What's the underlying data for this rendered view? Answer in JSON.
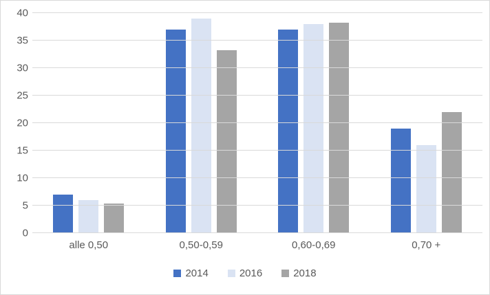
{
  "chart_data": {
    "type": "bar",
    "title": "",
    "xlabel": "",
    "ylabel": "",
    "categories": [
      "alle 0,50",
      "0,50-0,59",
      "0,60-0,69",
      "0,70 +"
    ],
    "series": [
      {
        "name": "2014",
        "color": "#4472C4",
        "values": [
          7,
          37,
          37,
          19
        ]
      },
      {
        "name": "2016",
        "color": "#DAE3F3",
        "values": [
          6,
          39,
          38,
          16
        ]
      },
      {
        "name": "2018",
        "color": "#A5A5A5",
        "values": [
          5.4,
          33.3,
          38.3,
          22
        ]
      }
    ],
    "ylim": [
      0,
      40
    ],
    "yticks": [
      0,
      5,
      10,
      15,
      20,
      25,
      30,
      35,
      40
    ],
    "grid": true,
    "legend_position": "bottom"
  },
  "colors": {
    "background": "#FFFFFF",
    "gridline": "#D9D9D9",
    "border": "#D9D9D9",
    "axis_text": "#595959"
  }
}
